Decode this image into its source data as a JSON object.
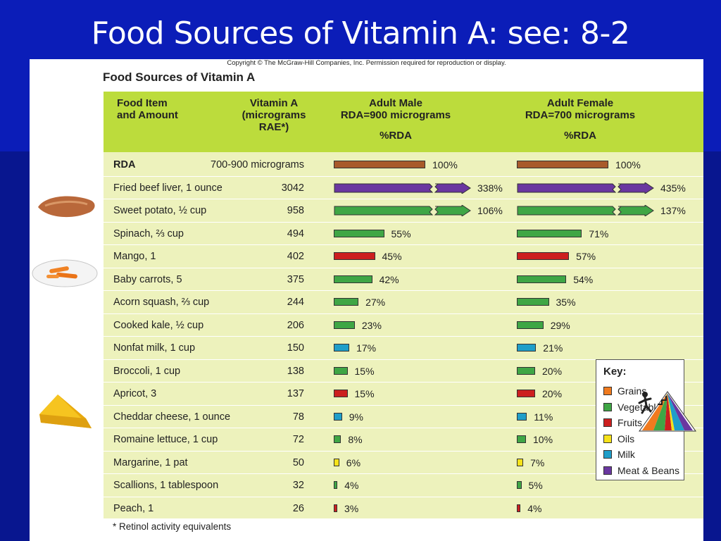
{
  "slide": {
    "title": "Food Sources of Vitamin A: see: 8-2"
  },
  "figure": {
    "copyright": "Copyright © The McGraw-Hill Companies, Inc. Permission required for reproduction or display.",
    "title": "Food Sources of Vitamin A",
    "footnote": "* Retinol activity equivalents"
  },
  "headers": {
    "food_line1": "Food Item",
    "food_line2": "and Amount",
    "vit_line1": "Vitamin A",
    "vit_line2": "(micrograms",
    "vit_line3": "RAE*)",
    "male_line1": "Adult Male",
    "male_line2": "RDA=900 micrograms",
    "male_pct": "%RDA",
    "female_line1": "Adult Female",
    "female_line2": "RDA=700 micrograms",
    "female_pct": "%RDA"
  },
  "key": {
    "title": "Key:",
    "items": [
      {
        "label": "Grains",
        "color": "#f07a1e"
      },
      {
        "label": "Vegetables",
        "color": "#3fa645"
      },
      {
        "label": "Fruits",
        "color": "#cc1f1f"
      },
      {
        "label": "Oils",
        "color": "#f6e21a"
      },
      {
        "label": "Milk",
        "color": "#1f9ec9"
      },
      {
        "label": "Meat & Beans",
        "color": "#6a37a0"
      }
    ]
  },
  "colors": {
    "rda": "#a85a2a",
    "meat": "#6a37a0",
    "veg": "#3fa645",
    "fruit": "#cc1f1f",
    "milk": "#1f9ec9",
    "oil": "#f6e21a"
  },
  "chart_data": {
    "type": "bar",
    "title": "Food Sources of Vitamin A",
    "series": [
      {
        "name": "Adult Male RDA=900 micrograms"
      },
      {
        "name": "Adult Female RDA=700 micrograms"
      }
    ],
    "rows": [
      {
        "food": "RDA",
        "amount": "700-900 micrograms",
        "group": "rda",
        "male": 100,
        "female": 100,
        "male_label": "100%",
        "female_label": "100%",
        "bold": true
      },
      {
        "food": "Fried beef liver, 1 ounce",
        "amount": "3042",
        "group": "meat",
        "male": 338,
        "female": 435,
        "male_label": "338%",
        "female_label": "435%",
        "broken": true
      },
      {
        "food": "Sweet potato, ½ cup",
        "amount": "958",
        "group": "veg",
        "male": 106,
        "female": 137,
        "male_label": "106%",
        "female_label": "137%",
        "broken": true
      },
      {
        "food": "Spinach, ⅔ cup",
        "amount": "494",
        "group": "veg",
        "male": 55,
        "female": 71,
        "male_label": "55%",
        "female_label": "71%"
      },
      {
        "food": "Mango, 1",
        "amount": "402",
        "group": "fruit",
        "male": 45,
        "female": 57,
        "male_label": "45%",
        "female_label": "57%"
      },
      {
        "food": "Baby carrots, 5",
        "amount": "375",
        "group": "veg",
        "male": 42,
        "female": 54,
        "male_label": "42%",
        "female_label": "54%"
      },
      {
        "food": "Acorn squash, ⅔ cup",
        "amount": "244",
        "group": "veg",
        "male": 27,
        "female": 35,
        "male_label": "27%",
        "female_label": "35%"
      },
      {
        "food": "Cooked kale, ½ cup",
        "amount": "206",
        "group": "veg",
        "male": 23,
        "female": 29,
        "male_label": "23%",
        "female_label": "29%"
      },
      {
        "food": "Nonfat milk, 1 cup",
        "amount": "150",
        "group": "milk",
        "male": 17,
        "female": 21,
        "male_label": "17%",
        "female_label": "21%"
      },
      {
        "food": "Broccoli, 1 cup",
        "amount": "138",
        "group": "veg",
        "male": 15,
        "female": 20,
        "male_label": "15%",
        "female_label": "20%"
      },
      {
        "food": "Apricot, 3",
        "amount": "137",
        "group": "fruit",
        "male": 15,
        "female": 20,
        "male_label": "15%",
        "female_label": "20%"
      },
      {
        "food": "Cheddar cheese, 1 ounce",
        "amount": "78",
        "group": "milk",
        "male": 9,
        "female": 11,
        "male_label": "9%",
        "female_label": "11%"
      },
      {
        "food": "Romaine lettuce, 1 cup",
        "amount": "72",
        "group": "veg",
        "male": 8,
        "female": 10,
        "male_label": "8%",
        "female_label": "10%"
      },
      {
        "food": "Margarine, 1 pat",
        "amount": "50",
        "group": "oil",
        "male": 6,
        "female": 7,
        "male_label": "6%",
        "female_label": "7%"
      },
      {
        "food": "Scallions, 1 tablespoon",
        "amount": "32",
        "group": "veg",
        "male": 4,
        "female": 5,
        "male_label": "4%",
        "female_label": "5%"
      },
      {
        "food": "Peach, 1",
        "amount": "26",
        "group": "fruit",
        "male": 3,
        "female": 4,
        "male_label": "3%",
        "female_label": "4%"
      }
    ]
  }
}
